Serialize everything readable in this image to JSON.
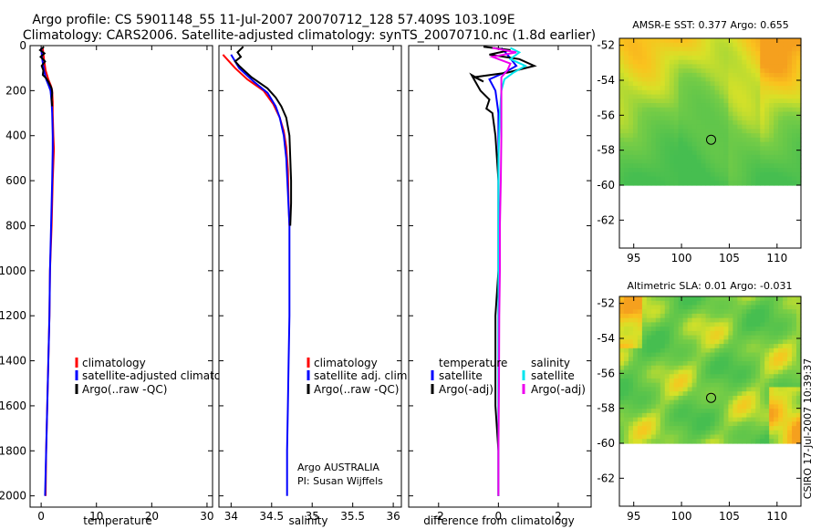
{
  "title": {
    "line1": "Argo profile: CS 5901148_55 11-Jul-2007 20070712_128 57.409S 103.109E",
    "line2": "Climatology: CARS2006. Satellite-adjusted climatology: synTS_20070710.nc (1.8d earlier)"
  },
  "colors": {
    "climatology": "#ff0000",
    "satellite": "#0000ff",
    "argo": "#000000",
    "sal_satellite": "#00e5ee",
    "sal_argo": "#ee00ee"
  },
  "chart_data": [
    {
      "type": "line",
      "id": "temperature",
      "xlabel": "temperature",
      "ylabel": "",
      "xlim": [
        -2,
        31
      ],
      "ylim": [
        2050,
        0
      ],
      "xticks": [
        "0",
        "10",
        "20",
        "30"
      ],
      "xtick_values": [
        0,
        10,
        20,
        30
      ],
      "yticks": [
        "0",
        "200",
        "400",
        "600",
        "800",
        "1000",
        "1200",
        "1400",
        "1600",
        "1800",
        "2000"
      ],
      "ytick_values": [
        0,
        200,
        400,
        600,
        800,
        1000,
        1200,
        1400,
        1600,
        1800,
        2000
      ],
      "legend": [
        "climatology",
        "satellite-adjusted climatology",
        "Argo(..raw -QC)"
      ],
      "legend_position": "lower-right",
      "series": [
        {
          "name": "climatology",
          "color_key": "climatology",
          "points": [
            [
              0.3,
              10
            ],
            [
              0.5,
              60
            ],
            [
              0.8,
              110
            ],
            [
              1.3,
              150
            ],
            [
              1.8,
              180
            ],
            [
              2.0,
              200
            ],
            [
              2.1,
              250
            ],
            [
              2.1,
              300
            ],
            [
              2.2,
              400
            ],
            [
              2.3,
              460
            ],
            [
              2.1,
              600
            ],
            [
              1.9,
              800
            ],
            [
              1.6,
              1000
            ],
            [
              1.5,
              1200
            ],
            [
              1.3,
              1400
            ],
            [
              1.1,
              1600
            ],
            [
              0.9,
              1800
            ],
            [
              0.8,
              2000
            ]
          ]
        },
        {
          "name": "satellite-adjusted climatology",
          "color_key": "satellite",
          "points": [
            [
              0.0,
              10
            ],
            [
              0.2,
              60
            ],
            [
              0.5,
              110
            ],
            [
              0.9,
              150
            ],
            [
              1.4,
              180
            ],
            [
              1.7,
              200
            ],
            [
              1.9,
              250
            ],
            [
              2.0,
              300
            ],
            [
              2.1,
              400
            ],
            [
              2.1,
              460
            ],
            [
              2.0,
              600
            ],
            [
              1.8,
              800
            ],
            [
              1.6,
              1000
            ],
            [
              1.5,
              1200
            ],
            [
              1.3,
              1400
            ],
            [
              1.1,
              1600
            ],
            [
              0.9,
              1800
            ],
            [
              0.7,
              2000
            ]
          ]
        },
        {
          "name": "Argo(..raw -QC)",
          "color_key": "argo",
          "points": [
            [
              0.5,
              5
            ],
            [
              -0.2,
              20
            ],
            [
              0.6,
              35
            ],
            [
              -0.1,
              50
            ],
            [
              0.7,
              70
            ],
            [
              0.1,
              90
            ],
            [
              0.4,
              110
            ],
            [
              0.3,
              130
            ],
            [
              0.9,
              145
            ],
            [
              1.3,
              160
            ],
            [
              1.6,
              175
            ],
            [
              1.9,
              190
            ],
            [
              2.0,
              210
            ],
            [
              1.9,
              240
            ],
            [
              2.0,
              270
            ]
          ]
        }
      ]
    },
    {
      "type": "line",
      "id": "salinity",
      "xlabel": "salinity",
      "xlim": [
        33.85,
        36.1
      ],
      "ylim": [
        2050,
        0
      ],
      "xticks": [
        "34",
        "34.5",
        "35",
        "35.5",
        "36"
      ],
      "xtick_values": [
        34,
        34.5,
        35,
        35.5,
        36
      ],
      "legend": [
        "climatology",
        "satellite adj. clim.",
        "Argo(..raw -QC)"
      ],
      "legend_position": "lower-right",
      "annotation": [
        "Argo AUSTRALIA",
        "PI: Susan Wijffels"
      ],
      "series": [
        {
          "name": "climatology",
          "color_key": "climatology",
          "points": [
            [
              33.9,
              40
            ],
            [
              34.05,
              100
            ],
            [
              34.2,
              150
            ],
            [
              34.4,
              200
            ],
            [
              34.52,
              260
            ],
            [
              34.6,
              320
            ],
            [
              34.65,
              380
            ],
            [
              34.68,
              450
            ],
            [
              34.7,
              550
            ],
            [
              34.71,
              700
            ],
            [
              34.72,
              800
            ]
          ]
        },
        {
          "name": "satellite adj. clim.",
          "color_key": "satellite",
          "points": [
            [
              34.0,
              40
            ],
            [
              34.1,
              100
            ],
            [
              34.28,
              160
            ],
            [
              34.45,
              210
            ],
            [
              34.55,
              270
            ],
            [
              34.6,
              320
            ],
            [
              34.65,
              400
            ],
            [
              34.68,
              500
            ],
            [
              34.7,
              650
            ],
            [
              34.72,
              800
            ],
            [
              34.72,
              1000
            ],
            [
              34.72,
              1200
            ],
            [
              34.71,
              1400
            ],
            [
              34.7,
              1600
            ],
            [
              34.69,
              1800
            ],
            [
              34.69,
              2000
            ]
          ]
        },
        {
          "name": "Argo(..raw -QC)",
          "color_key": "argo",
          "points": [
            [
              34.15,
              5
            ],
            [
              34.08,
              30
            ],
            [
              34.12,
              50
            ],
            [
              34.05,
              70
            ],
            [
              34.1,
              90
            ],
            [
              34.25,
              140
            ],
            [
              34.45,
              190
            ],
            [
              34.55,
              230
            ],
            [
              34.62,
              270
            ],
            [
              34.68,
              320
            ],
            [
              34.72,
              400
            ],
            [
              34.73,
              500
            ],
            [
              34.74,
              600
            ],
            [
              34.74,
              700
            ],
            [
              34.73,
              800
            ]
          ]
        }
      ]
    },
    {
      "type": "line",
      "id": "difference",
      "xlabel": "difference from climatology",
      "xlim": [
        -3,
        3.1
      ],
      "ylim": [
        2050,
        0
      ],
      "xticks": [
        "-2",
        "0",
        "2"
      ],
      "xtick_values": [
        -2,
        0,
        2
      ],
      "legend_left_title": "temperature",
      "legend_left": [
        "satellite",
        "Argo(-adj)"
      ],
      "legend_right_title": "salinity",
      "legend_right": [
        "satellite",
        "Argo(-adj)"
      ],
      "legend_position": "lower-center",
      "series": [
        {
          "name": "temperature satellite",
          "color_key": "satellite",
          "points": [
            [
              0.1,
              10
            ],
            [
              0.3,
              40
            ],
            [
              0.6,
              90
            ],
            [
              0.2,
              120
            ],
            [
              -0.3,
              150
            ],
            [
              -0.1,
              200
            ],
            [
              0.0,
              300
            ],
            [
              0.0,
              500
            ],
            [
              0.0,
              800
            ],
            [
              0.0,
              1000
            ],
            [
              0.0,
              1200
            ],
            [
              0.0,
              1500
            ],
            [
              0.0,
              1800
            ],
            [
              0.0,
              2000
            ]
          ]
        },
        {
          "name": "temperature Argo(-adj)",
          "color_key": "argo",
          "points": [
            [
              -0.5,
              5
            ],
            [
              0.4,
              20
            ],
            [
              -0.3,
              40
            ],
            [
              0.7,
              60
            ],
            [
              1.2,
              90
            ],
            [
              0.3,
              120
            ],
            [
              -0.8,
              140
            ],
            [
              -0.5,
              160
            ],
            [
              -0.9,
              130
            ],
            [
              -0.6,
              200
            ],
            [
              -0.3,
              240
            ],
            [
              -0.4,
              280
            ],
            [
              -0.2,
              300
            ],
            [
              -0.1,
              400
            ],
            [
              0.0,
              600
            ],
            [
              0.0,
              800
            ],
            [
              0.0,
              1000
            ],
            [
              -0.1,
              1200
            ],
            [
              -0.1,
              1400
            ],
            [
              -0.1,
              1600
            ],
            [
              0.0,
              1800
            ],
            [
              0.0,
              2000
            ]
          ]
        },
        {
          "name": "salinity satellite",
          "color_key": "sal_satellite",
          "points": [
            [
              0.4,
              10
            ],
            [
              0.7,
              30
            ],
            [
              0.4,
              60
            ],
            [
              0.9,
              90
            ],
            [
              0.5,
              120
            ],
            [
              0.2,
              150
            ],
            [
              0.1,
              200
            ],
            [
              0.05,
              300
            ],
            [
              0.0,
              500
            ],
            [
              0.0,
              800
            ],
            [
              0.0,
              1000
            ],
            [
              0.0,
              1200
            ],
            [
              0.0,
              1500
            ],
            [
              0.0,
              1800
            ],
            [
              0.0,
              2000
            ]
          ]
        },
        {
          "name": "salinity Argo(-adj)",
          "color_key": "sal_argo",
          "points": [
            [
              -0.2,
              10
            ],
            [
              0.6,
              30
            ],
            [
              -0.2,
              50
            ],
            [
              0.4,
              80
            ],
            [
              0.3,
              110
            ],
            [
              0.1,
              140
            ],
            [
              0.1,
              200
            ],
            [
              0.1,
              300
            ],
            [
              0.1,
              400
            ],
            [
              0.08,
              600
            ],
            [
              0.05,
              800
            ],
            [
              0.05,
              1000
            ],
            [
              0.03,
              1200
            ],
            [
              0.02,
              1500
            ],
            [
              0.0,
              1800
            ],
            [
              0.0,
              2000
            ]
          ]
        }
      ]
    },
    {
      "type": "heatmap",
      "id": "sst-map",
      "title": "AMSR-E SST: 0.377  Argo: 0.655",
      "xlim": [
        93.5,
        112.5
      ],
      "ylim": [
        -63.6,
        -51.6
      ],
      "data_ylim": [
        -60,
        -51.6
      ],
      "xticks": [
        "95",
        "100",
        "105",
        "110"
      ],
      "xtick_values": [
        95,
        100,
        105,
        110
      ],
      "yticks": [
        "-52",
        "-54",
        "-56",
        "-58",
        "-60",
        "-62"
      ],
      "ytick_values": [
        -52,
        -54,
        -56,
        -58,
        -60,
        -62
      ],
      "marker": {
        "lon": 103.1,
        "lat": -57.4
      },
      "pattern": "sst"
    },
    {
      "type": "heatmap",
      "id": "sla-map",
      "title": "Altimetric SLA: 0.01  Argo: -0.031",
      "xlim": [
        93.5,
        112.5
      ],
      "ylim": [
        -63.6,
        -51.6
      ],
      "data_ylim": [
        -60,
        -51.6
      ],
      "xticks": [
        "95",
        "100",
        "105",
        "110"
      ],
      "xtick_values": [
        95,
        100,
        105,
        110
      ],
      "yticks": [
        "-52",
        "-54",
        "-56",
        "-58",
        "-60",
        "-62"
      ],
      "ytick_values": [
        -52,
        -54,
        -56,
        -58,
        -60,
        -62
      ],
      "marker": {
        "lon": 103.1,
        "lat": -57.4
      },
      "pattern": "sla"
    }
  ],
  "credit": "CSIRO 17-Jul-2007 10:39:37"
}
